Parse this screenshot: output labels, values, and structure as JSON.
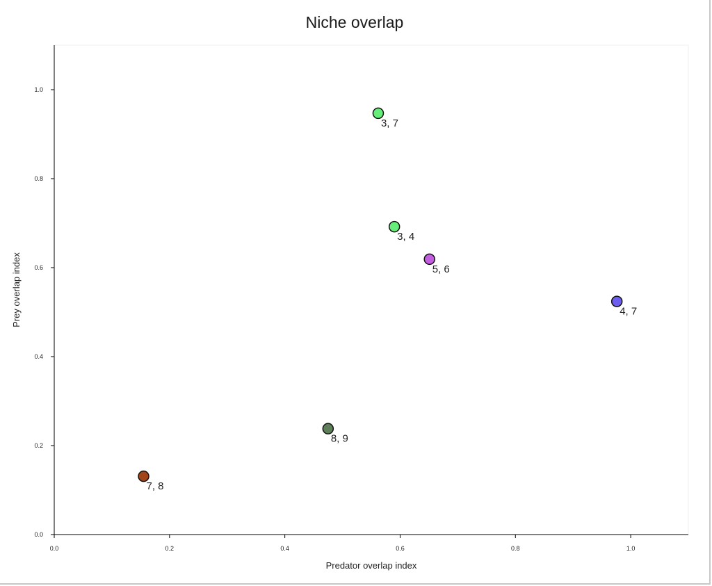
{
  "chart_data": {
    "type": "scatter",
    "title": "Niche overlap",
    "xlabel": "Predator overlap index",
    "ylabel": "Prey overlap index",
    "xlim": [
      0.0,
      1.1
    ],
    "ylim": [
      0.0,
      1.1
    ],
    "xticks": [
      "0.0",
      "0.2",
      "0.4",
      "0.6",
      "0.8",
      "1.0"
    ],
    "yticks": [
      "0.0",
      "0.2",
      "0.4",
      "0.6",
      "0.8",
      "1.0"
    ],
    "grid": false,
    "points": [
      {
        "label": "3, 7",
        "x": 0.562,
        "y": 0.947,
        "color": "#66ee7a"
      },
      {
        "label": "3, 4",
        "x": 0.59,
        "y": 0.692,
        "color": "#66ee7a"
      },
      {
        "label": "5, 6",
        "x": 0.651,
        "y": 0.619,
        "color": "#c45ee0"
      },
      {
        "label": "4, 7",
        "x": 0.976,
        "y": 0.524,
        "color": "#6e5ef0"
      },
      {
        "label": "8, 9",
        "x": 0.475,
        "y": 0.238,
        "color": "#5f7e5a"
      },
      {
        "label": "7, 8",
        "x": 0.155,
        "y": 0.131,
        "color": "#a2451b"
      }
    ]
  }
}
